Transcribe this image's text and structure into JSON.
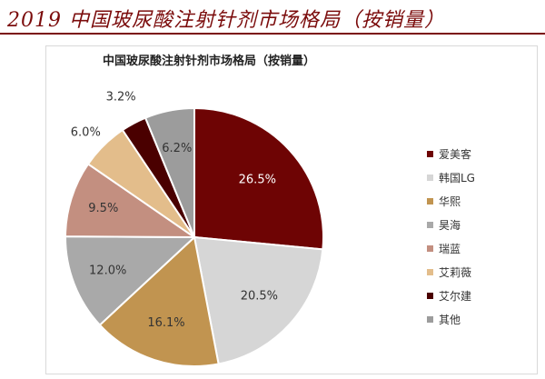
{
  "header": {
    "title": "2019 中国玻尿酸注射针剂市场格局（按销量）"
  },
  "chart_data": {
    "type": "pie",
    "title": "中国玻尿酸注射针剂市场格局（按销量）",
    "start_angle_deg": 0,
    "direction": "clockwise",
    "slices": [
      {
        "label": "爱美客",
        "value": 26.5,
        "value_label": "26.5%",
        "color": "#6e0404",
        "label_color": "#ffffff"
      },
      {
        "label": "韩国LG",
        "value": 20.5,
        "value_label": "20.5%",
        "color": "#d6d6d6",
        "label_color": "#333333"
      },
      {
        "label": "华熙",
        "value": 16.1,
        "value_label": "16.1%",
        "color": "#c19450",
        "label_color": "#333333"
      },
      {
        "label": "昊海",
        "value": 12.0,
        "value_label": "12.0%",
        "color": "#a9a9a9",
        "label_color": "#333333"
      },
      {
        "label": "瑞蓝",
        "value": 9.5,
        "value_label": "9.5%",
        "color": "#c38f80",
        "label_color": "#333333"
      },
      {
        "label": "艾莉薇",
        "value": 6.0,
        "value_label": "6.0%",
        "color": "#e3bd8b",
        "label_color": "#333333"
      },
      {
        "label": "艾尔建",
        "value": 3.2,
        "value_label": "3.2%",
        "color": "#4a0000",
        "label_color": "#333333"
      },
      {
        "label": "其他",
        "value": 6.2,
        "value_label": "6.2%",
        "color": "#9c9c9c",
        "label_color": "#333333"
      }
    ],
    "legend_position": "right"
  }
}
